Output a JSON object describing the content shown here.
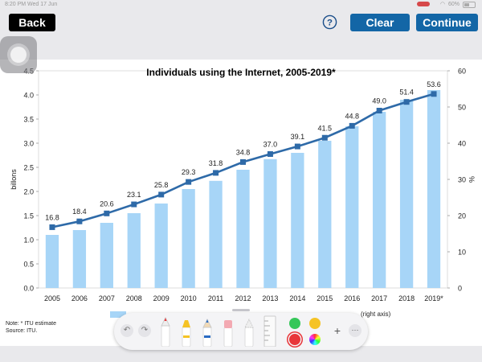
{
  "status_bar": {
    "time_date": "8:20 PM  Wed 17 Jun",
    "battery": "60%"
  },
  "toolbar": {
    "back_label": "Back",
    "help_icon": "question-circle-icon",
    "clear_label": "Clear",
    "continue_label": "Continue"
  },
  "footnote": {
    "note": "Note: * ITU estimate",
    "source": "Source: ITU.",
    "legend_tail": "(right axis)"
  },
  "markup_tools": {
    "icons": [
      "undo-icon",
      "redo-icon",
      "pen-icon",
      "marker-icon",
      "pencil-icon",
      "eraser-icon",
      "lasso-icon",
      "ruler-icon",
      "color-palette-icon",
      "add-icon",
      "more-icon"
    ],
    "colors": [
      "#35c759",
      "#f5c325",
      "#e8363a"
    ]
  },
  "chart_data": {
    "type": "bar",
    "title": "Individuals using the Internet, 2005-2019*",
    "categories": [
      "2005",
      "2006",
      "2007",
      "2008",
      "2009",
      "2010",
      "2011",
      "2012",
      "2013",
      "2014",
      "2015",
      "2016",
      "2017",
      "2018",
      "2019*"
    ],
    "series": [
      {
        "values": [
          1.1,
          1.2,
          1.35,
          1.55,
          1.75,
          2.05,
          2.22,
          2.45,
          2.67,
          2.8,
          3.05,
          3.35,
          3.65,
          3.9,
          4.1
        ],
        "color": "#a7d5f7",
        "axis": "left"
      },
      {
        "type": "line",
        "values": [
          16.8,
          18.4,
          20.6,
          23.1,
          25.8,
          29.3,
          31.8,
          34.8,
          37.0,
          39.1,
          41.5,
          44.8,
          49.0,
          51.4,
          53.6
        ],
        "labels": [
          "16.8",
          "18.4",
          "20.6",
          "23.1",
          "25.8",
          "29.3",
          "31.8",
          "34.8",
          "37.0",
          "39.1",
          "41.5",
          "44.8",
          "49.0",
          "51.4",
          "53.6"
        ],
        "color": "#2e6aa8",
        "axis": "right"
      }
    ],
    "ylabel": "billons",
    "ylim": [
      0,
      4.5
    ],
    "yticks": [
      "0.0",
      "0.5",
      "1.0",
      "1.5",
      "2.0",
      "2.5",
      "3.0",
      "3.5",
      "4.0",
      "4.5"
    ],
    "y2label": "%",
    "y2lim": [
      0,
      60
    ],
    "y2ticks": [
      "0",
      "10",
      "20",
      "30",
      "40",
      "50",
      "60"
    ],
    "grid": false
  }
}
